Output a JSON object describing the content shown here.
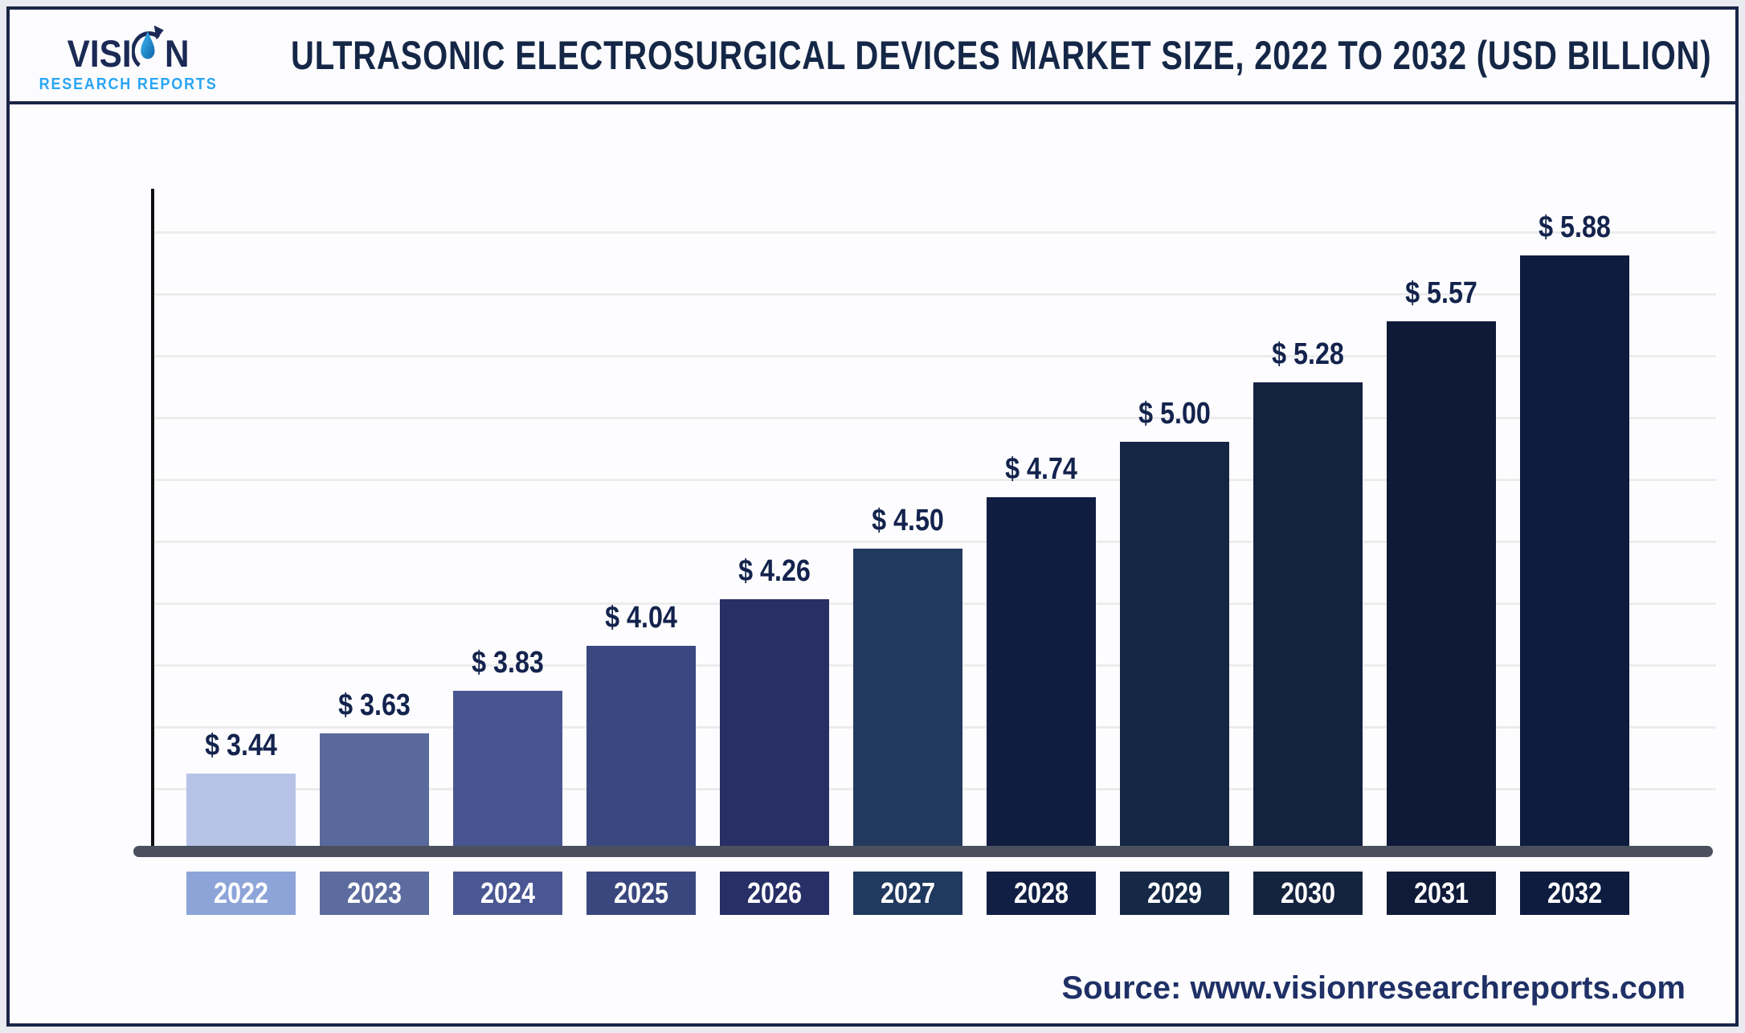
{
  "header": {
    "logo": {
      "brand_pre": "VISI",
      "brand_post": "N",
      "subtitle": "RESEARCH REPORTS"
    },
    "title": "ULTRASONIC ELECTROSURGICAL DEVICES MARKET SIZE, 2022 TO 2032 (USD BILLION)"
  },
  "footer": {
    "source": "Source: www.visionresearchreports.com"
  },
  "colors": {
    "frame_border": "#1b2547",
    "title_navy": "#152747",
    "logo_navy": "#1b2a55",
    "logo_blue": "#2aa5f4",
    "gridline": "#ececec",
    "baseline": "#4a505e",
    "value_label": "#13234d",
    "source_text": "#1f3066"
  },
  "chart_data": {
    "type": "bar",
    "title": "Ultrasonic Electrosurgical Devices Market Size, 2022 to 2032 (USD Billion)",
    "xlabel": "",
    "ylabel": "",
    "unit": "USD Billion",
    "grid": true,
    "legend": "none",
    "ylim": [
      3.1,
      6.0
    ],
    "categories": [
      "2022",
      "2023",
      "2024",
      "2025",
      "2026",
      "2027",
      "2028",
      "2029",
      "2030",
      "2031",
      "2032"
    ],
    "values": [
      3.44,
      3.63,
      3.83,
      4.04,
      4.26,
      4.5,
      4.74,
      5.0,
      5.28,
      5.57,
      5.88
    ],
    "value_labels": [
      "$ 3.44",
      "$ 3.63",
      "$ 3.83",
      "$ 4.04",
      "$ 4.26",
      "$ 4.50",
      "$ 4.74",
      "$ 5.00",
      "$ 5.28",
      "$ 5.57",
      "$ 5.88"
    ],
    "bar_colors": [
      "#b7c3e6",
      "#5a699c",
      "#485590",
      "#3a4780",
      "#272f64",
      "#223a5e",
      "#111c41",
      "#152544",
      "#14223f",
      "#0f1a38",
      "#0e1c40"
    ],
    "tick_colors": [
      "#8da4d8",
      "#5d6c9e",
      "#4a5792",
      "#3a477f",
      "#272f66",
      "#20395e",
      "#111f45",
      "#152946",
      "#15233f",
      "#101b3a",
      "#0e1c40"
    ]
  }
}
